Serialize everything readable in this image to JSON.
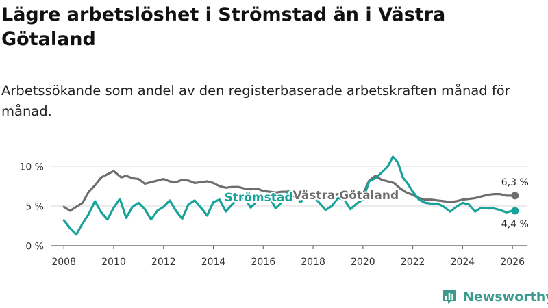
{
  "title": "Lägre arbetslöshet i Strömstad än i Västra Götaland",
  "subtitle": "Arbetssökande som andel av den registerbaserade arbetskraften månad för månad.",
  "brand": {
    "name": "Newsworthy",
    "icon": "newsworthy-bar-chart-logo-icon",
    "color": "#3a9a8c"
  },
  "chart_data": {
    "type": "line",
    "title": "Lägre arbetslöshet i Strömstad än i Västra Götaland",
    "subtitle": "Arbetssökande som andel av den registerbaserade arbetskraften månad för månad.",
    "xlabel": "",
    "ylabel": "",
    "xlim": [
      2007.5,
      2026.6
    ],
    "ylim": [
      0,
      10
    ],
    "grid": true,
    "x_ticks": [
      2008,
      2010,
      2012,
      2014,
      2016,
      2018,
      2020,
      2022,
      2024,
      2026
    ],
    "x_tick_labels": [
      "2008",
      "2010",
      "2012",
      "2014",
      "2016",
      "2018",
      "2020",
      "2022",
      "2024",
      "2026"
    ],
    "y_ticks": [
      0,
      5,
      10
    ],
    "y_tick_labels": [
      "0 %",
      "5 %",
      "10 %"
    ],
    "series": [
      {
        "name": "Västra Götaland",
        "color": "#6e6e6e",
        "end_label": "6,3 %",
        "x": [
          2008.0,
          2008.25,
          2008.5,
          2008.75,
          2009.0,
          2009.25,
          2009.5,
          2009.75,
          2010.0,
          2010.15,
          2010.3,
          2010.5,
          2010.75,
          2011.0,
          2011.25,
          2011.5,
          2011.75,
          2012.0,
          2012.25,
          2012.5,
          2012.75,
          2013.0,
          2013.25,
          2013.5,
          2013.75,
          2014.0,
          2014.25,
          2014.5,
          2014.75,
          2015.0,
          2015.25,
          2015.5,
          2015.75,
          2016.0,
          2016.25,
          2016.5,
          2016.75,
          2017.0,
          2017.25,
          2017.5,
          2017.75,
          2018.0,
          2018.25,
          2018.5,
          2018.75,
          2019.0,
          2019.25,
          2019.5,
          2019.75,
          2020.0,
          2020.25,
          2020.5,
          2020.75,
          2021.0,
          2021.25,
          2021.5,
          2021.75,
          2022.0,
          2022.25,
          2022.5,
          2022.75,
          2023.0,
          2023.25,
          2023.5,
          2023.75,
          2024.0,
          2024.25,
          2024.5,
          2024.75,
          2025.0,
          2025.25,
          2025.5,
          2025.75,
          2026.0,
          2026.1
        ],
        "values": [
          4.9,
          4.4,
          4.9,
          5.4,
          6.8,
          7.6,
          8.6,
          9.0,
          9.4,
          9.0,
          8.6,
          8.8,
          8.5,
          8.4,
          7.8,
          8.0,
          8.2,
          8.4,
          8.1,
          8.0,
          8.3,
          8.2,
          7.9,
          8.0,
          8.1,
          7.9,
          7.5,
          7.3,
          7.4,
          7.4,
          7.2,
          7.1,
          7.2,
          6.9,
          6.8,
          6.7,
          6.8,
          6.8,
          6.6,
          6.5,
          6.3,
          6.4,
          6.3,
          6.4,
          6.3,
          6.5,
          6.4,
          6.3,
          6.3,
          6.5,
          8.2,
          8.8,
          8.3,
          8.1,
          7.9,
          7.2,
          6.7,
          6.4,
          6.0,
          5.8,
          5.8,
          5.7,
          5.6,
          5.5,
          5.6,
          5.8,
          5.9,
          6.0,
          6.2,
          6.4,
          6.5,
          6.5,
          6.3,
          6.3,
          6.3
        ]
      },
      {
        "name": "Strömstad",
        "color": "#17a399",
        "end_label": "4,4 %",
        "x": [
          2008.0,
          2008.25,
          2008.5,
          2008.75,
          2009.0,
          2009.25,
          2009.5,
          2009.75,
          2010.0,
          2010.25,
          2010.5,
          2010.75,
          2011.0,
          2011.25,
          2011.5,
          2011.75,
          2012.0,
          2012.25,
          2012.5,
          2012.75,
          2013.0,
          2013.25,
          2013.5,
          2013.75,
          2014.0,
          2014.25,
          2014.5,
          2014.75,
          2015.0,
          2015.25,
          2015.5,
          2015.75,
          2016.0,
          2016.25,
          2016.5,
          2016.75,
          2017.0,
          2017.25,
          2017.5,
          2017.75,
          2018.0,
          2018.25,
          2018.5,
          2018.75,
          2019.0,
          2019.25,
          2019.5,
          2019.75,
          2020.0,
          2020.25,
          2020.5,
          2020.75,
          2021.0,
          2021.2,
          2021.4,
          2021.6,
          2021.8,
          2022.0,
          2022.25,
          2022.5,
          2022.75,
          2023.0,
          2023.25,
          2023.5,
          2023.75,
          2024.0,
          2024.25,
          2024.5,
          2024.75,
          2025.0,
          2025.25,
          2025.5,
          2025.75,
          2026.0,
          2026.1
        ],
        "values": [
          3.2,
          2.2,
          1.4,
          2.8,
          4.0,
          5.6,
          4.2,
          3.3,
          4.8,
          5.9,
          3.5,
          4.9,
          5.4,
          4.6,
          3.3,
          4.4,
          4.9,
          5.7,
          4.4,
          3.4,
          5.2,
          5.7,
          4.8,
          3.8,
          5.5,
          5.8,
          4.3,
          5.2,
          5.9,
          6.0,
          4.8,
          5.6,
          6.4,
          6.1,
          4.7,
          5.5,
          6.9,
          6.2,
          5.5,
          6.2,
          6.3,
          5.4,
          4.5,
          5.0,
          6.0,
          5.8,
          4.6,
          5.3,
          5.8,
          8.1,
          8.5,
          9.2,
          10.0,
          11.2,
          10.5,
          8.6,
          7.8,
          6.8,
          5.8,
          5.4,
          5.3,
          5.3,
          4.9,
          4.3,
          4.9,
          5.4,
          5.2,
          4.3,
          4.8,
          4.7,
          4.7,
          4.5,
          4.2,
          4.4,
          4.4
        ]
      }
    ]
  }
}
